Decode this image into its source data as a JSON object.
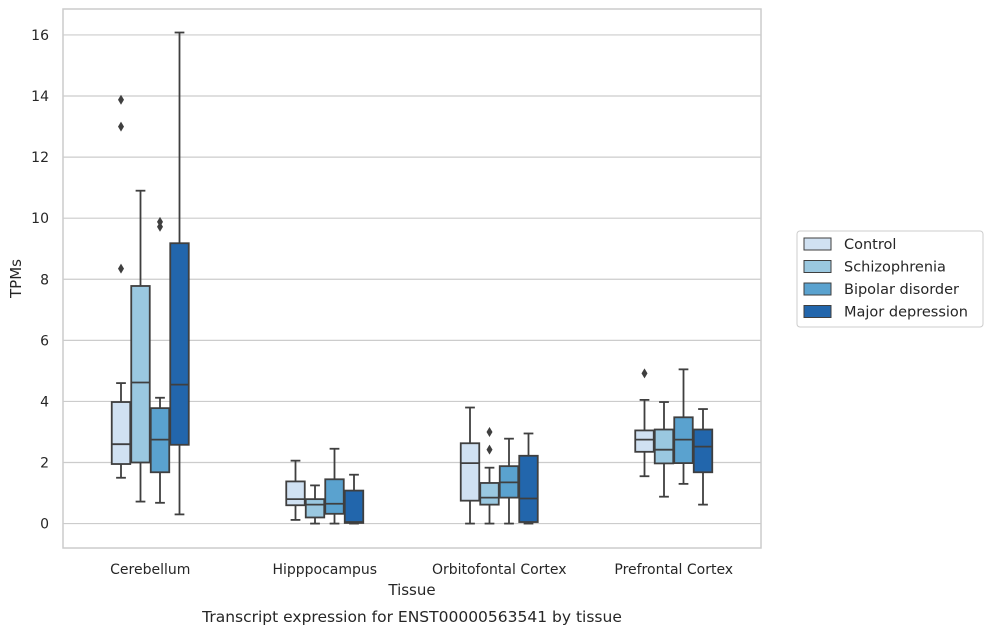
{
  "chart_data": {
    "type": "box",
    "title": "",
    "caption": "Transcript expression for ENST00000563541 by tissue",
    "xlabel": "Tissue",
    "ylabel": "TPMs",
    "ylim": [
      -0.8,
      16.85
    ],
    "yticks": [
      0,
      2,
      4,
      6,
      8,
      10,
      12,
      14,
      16
    ],
    "grid": "horizontal",
    "legend_position": "right",
    "categories": [
      "Cerebellum",
      "Hipppocampus",
      "Orbitofontal Cortex",
      "Prefrontal Cortex"
    ],
    "series": [
      {
        "name": "Control",
        "color": "#d0e1f2",
        "boxes": [
          {
            "whislo": 1.5,
            "q1": 1.95,
            "med": 2.6,
            "q3": 3.98,
            "whishi": 4.6,
            "fliers": [
              8.35,
              13.0,
              13.88
            ]
          },
          {
            "whislo": 0.12,
            "q1": 0.6,
            "med": 0.8,
            "q3": 1.38,
            "whishi": 2.06,
            "fliers": []
          },
          {
            "whislo": 0.0,
            "q1": 0.75,
            "med": 1.98,
            "q3": 2.63,
            "whishi": 3.8,
            "fliers": []
          },
          {
            "whislo": 1.55,
            "q1": 2.35,
            "med": 2.75,
            "q3": 3.05,
            "whishi": 4.05,
            "fliers": [
              4.92
            ]
          }
        ]
      },
      {
        "name": "Schizophrenia",
        "color": "#9ac8e0",
        "boxes": [
          {
            "whislo": 0.72,
            "q1": 2.0,
            "med": 4.62,
            "q3": 7.78,
            "whishi": 10.9,
            "fliers": []
          },
          {
            "whislo": 0.0,
            "q1": 0.2,
            "med": 0.62,
            "q3": 0.8,
            "whishi": 1.25,
            "fliers": []
          },
          {
            "whislo": 0.0,
            "q1": 0.62,
            "med": 0.85,
            "q3": 1.33,
            "whishi": 1.83,
            "fliers": [
              2.42,
              3.0
            ]
          },
          {
            "whislo": 0.88,
            "q1": 1.97,
            "med": 2.42,
            "q3": 3.08,
            "whishi": 3.98,
            "fliers": []
          }
        ]
      },
      {
        "name": "Bipolar disorder",
        "color": "#5aa2cf",
        "boxes": [
          {
            "whislo": 0.68,
            "q1": 1.68,
            "med": 2.75,
            "q3": 3.78,
            "whishi": 4.12,
            "fliers": [
              9.72,
              9.88
            ]
          },
          {
            "whislo": 0.0,
            "q1": 0.32,
            "med": 0.65,
            "q3": 1.45,
            "whishi": 2.45,
            "fliers": []
          },
          {
            "whislo": 0.0,
            "q1": 0.85,
            "med": 1.35,
            "q3": 1.88,
            "whishi": 2.78,
            "fliers": []
          },
          {
            "whislo": 1.3,
            "q1": 1.98,
            "med": 2.75,
            "q3": 3.48,
            "whishi": 5.05,
            "fliers": []
          }
        ]
      },
      {
        "name": "Major depression",
        "color": "#2266ac",
        "boxes": [
          {
            "whislo": 0.3,
            "q1": 2.58,
            "med": 4.55,
            "q3": 9.18,
            "whishi": 16.08,
            "fliers": []
          },
          {
            "whislo": 0.0,
            "q1": 0.02,
            "med": 0.05,
            "q3": 1.08,
            "whishi": 1.6,
            "fliers": []
          },
          {
            "whislo": 0.0,
            "q1": 0.05,
            "med": 0.82,
            "q3": 2.22,
            "whishi": 2.95,
            "fliers": []
          },
          {
            "whislo": 0.62,
            "q1": 1.68,
            "med": 2.52,
            "q3": 3.08,
            "whishi": 3.75,
            "fliers": []
          }
        ]
      }
    ]
  }
}
